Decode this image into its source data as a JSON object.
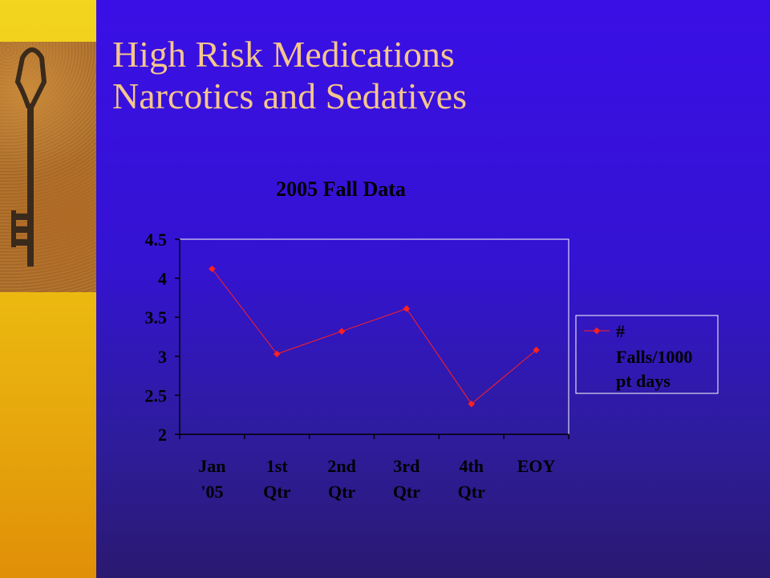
{
  "slide": {
    "title_line1": "High Risk Medications",
    "title_line2": "Narcotics and Sedatives"
  },
  "colors": {
    "series": "#ff2020",
    "axis": "#000000",
    "text": "#000000"
  },
  "chart_data": {
    "type": "line",
    "title": "2005 Fall Data",
    "categories": [
      [
        "Jan",
        "'05"
      ],
      [
        "1st",
        "Qtr"
      ],
      [
        "2nd",
        "Qtr"
      ],
      [
        "3rd",
        "Qtr"
      ],
      [
        "4th",
        "Qtr"
      ],
      [
        "EOY"
      ]
    ],
    "series": [
      {
        "name": "# Falls/1000 pt days",
        "values": [
          4.12,
          3.03,
          3.32,
          3.61,
          2.39,
          3.08
        ]
      }
    ],
    "ylim": [
      2,
      4.5
    ],
    "yticks": [
      "2",
      "2.5",
      "3",
      "3.5",
      "4",
      "4.5"
    ],
    "legend_lines": [
      "#",
      "Falls/1000",
      "pt days"
    ],
    "legend_position": "right",
    "grid": false
  }
}
